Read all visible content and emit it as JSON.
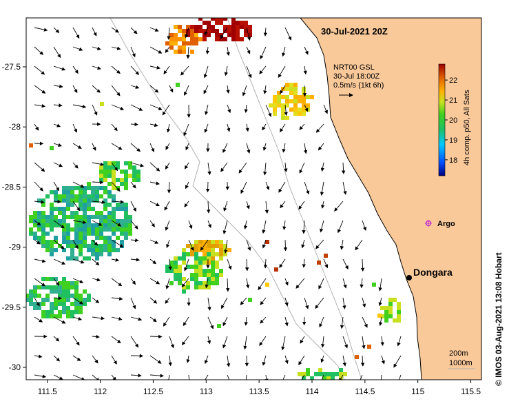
{
  "title": "30-Jul-2021 20Z",
  "vector_legend": {
    "lines": [
      "NRT00 GSL",
      "30-Jul 18:00Z",
      "0.5m/s (1kt 6h)"
    ]
  },
  "colorbar": {
    "label": "4h comp. p50, All Sats",
    "ticks": [
      "18",
      "19",
      "20",
      "21",
      "22"
    ],
    "min": 17.2,
    "max": 22.8
  },
  "places": [
    {
      "name": "Dongara",
      "lon": 114.93,
      "lat": -29.26,
      "kind": "town"
    },
    {
      "name": "Argo",
      "lon": 115.13,
      "lat": -28.85,
      "kind": "argo"
    }
  ],
  "scale": {
    "lines": [
      "200m",
      "1000m"
    ]
  },
  "credit": "© IMOS 03-Aug-2021 13:08 Hobart",
  "axes": {
    "x_ticks": [
      "111.5",
      "112",
      "112.5",
      "113",
      "113.5",
      "114",
      "114.5",
      "115",
      "115.5"
    ],
    "y_ticks": [
      "-27.5",
      "-28",
      "-28.5",
      "-29",
      "-29.5",
      "-30"
    ],
    "lon_range": [
      111.3,
      115.6
    ],
    "lat_range": [
      -27.05,
      -30.1
    ]
  },
  "colors": {
    "land": "#f9c99a",
    "coast": "#000000",
    "isobath": "#b0b0b0",
    "argo": "#cc33cc"
  }
}
